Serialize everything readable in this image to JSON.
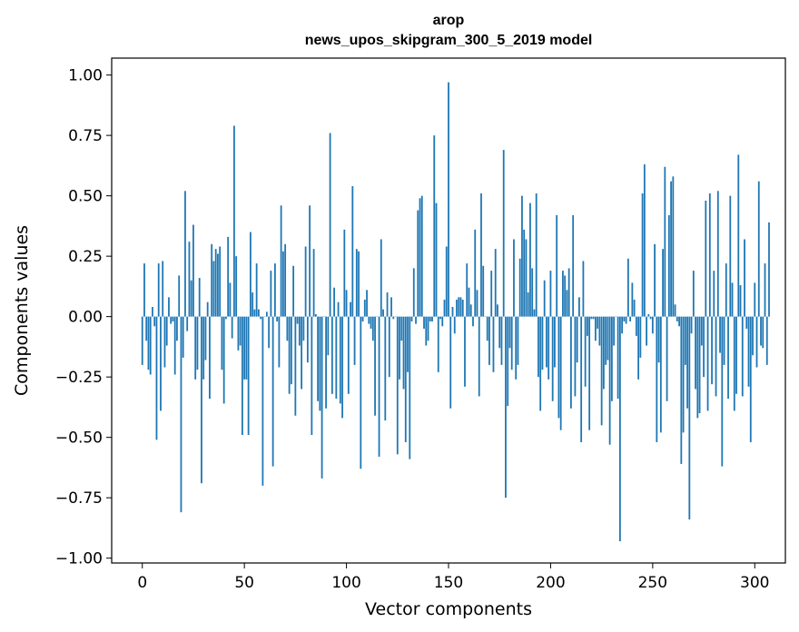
{
  "chart_data": {
    "type": "bar",
    "title": "arop",
    "subtitle": "news_upos_skipgram_300_5_2019 model",
    "xlabel": "Vector components",
    "ylabel": "Components values",
    "xlim": [
      -15,
      315
    ],
    "ylim": [
      -1.02,
      1.07
    ],
    "xticks": [
      0,
      50,
      100,
      150,
      200,
      250,
      300
    ],
    "xtick_labels": [
      "0",
      "50",
      "100",
      "150",
      "200",
      "250",
      "300"
    ],
    "yticks": [
      1.0,
      0.75,
      0.5,
      0.25,
      0.0,
      -0.25,
      -0.5,
      -0.75,
      -1.0
    ],
    "ytick_labels": [
      "1.00",
      "0.75",
      "0.50",
      "0.25",
      "0.00",
      "−0.25",
      "−0.50",
      "−0.75",
      "−1.00"
    ],
    "grid": false,
    "bar_color": "#1f77b4",
    "values": [
      -0.2,
      0.22,
      -0.1,
      -0.22,
      -0.24,
      0.04,
      -0.04,
      -0.51,
      0.22,
      -0.39,
      0.23,
      -0.21,
      -0.12,
      0.08,
      -0.03,
      -0.02,
      -0.24,
      -0.1,
      0.17,
      -0.81,
      -0.17,
      0.52,
      -0.06,
      0.31,
      0.15,
      0.38,
      -0.26,
      -0.22,
      0.16,
      -0.69,
      -0.26,
      -0.18,
      0.06,
      -0.34,
      0.3,
      0.23,
      0.28,
      0.26,
      0.29,
      -0.22,
      -0.36,
      -0.01,
      0.33,
      0.14,
      -0.09,
      0.79,
      0.25,
      -0.14,
      -0.12,
      -0.49,
      -0.26,
      -0.26,
      -0.49,
      0.35,
      0.1,
      0.03,
      0.22,
      0.03,
      -0.01,
      -0.7,
      0.0,
      0.02,
      -0.13,
      0.19,
      -0.62,
      0.22,
      -0.02,
      -0.21,
      0.46,
      0.27,
      0.3,
      -0.1,
      -0.32,
      -0.28,
      0.21,
      -0.41,
      -0.03,
      -0.12,
      -0.3,
      -0.1,
      0.29,
      -0.19,
      0.46,
      -0.49,
      0.28,
      0.01,
      -0.35,
      -0.39,
      -0.67,
      0.0,
      -0.38,
      -0.16,
      0.76,
      -0.32,
      0.12,
      -0.34,
      0.06,
      -0.36,
      -0.42,
      0.36,
      0.11,
      -0.32,
      0.06,
      0.54,
      -0.2,
      0.28,
      0.27,
      -0.63,
      -0.02,
      0.07,
      0.11,
      -0.03,
      -0.05,
      -0.1,
      -0.41,
      0.0,
      -0.58,
      0.32,
      0.03,
      -0.43,
      0.1,
      -0.25,
      0.08,
      -0.01,
      0.0,
      -0.57,
      -0.26,
      -0.1,
      -0.3,
      -0.52,
      -0.23,
      -0.59,
      -0.02,
      0.2,
      -0.03,
      0.44,
      0.49,
      0.5,
      -0.05,
      -0.12,
      -0.1,
      -0.02,
      -0.02,
      0.75,
      0.47,
      -0.23,
      -0.01,
      -0.04,
      0.07,
      0.29,
      0.97,
      -0.38,
      0.04,
      -0.07,
      0.07,
      0.08,
      0.08,
      0.07,
      -0.29,
      0.22,
      0.12,
      0.05,
      -0.04,
      0.36,
      0.11,
      -0.33,
      0.51,
      0.21,
      0.0,
      -0.1,
      -0.2,
      0.19,
      -0.23,
      0.28,
      0.05,
      -0.13,
      -0.2,
      0.69,
      -0.75,
      -0.37,
      -0.13,
      -0.22,
      0.32,
      -0.26,
      -0.2,
      0.24,
      0.5,
      0.36,
      0.32,
      0.1,
      0.47,
      0.2,
      0.03,
      0.51,
      -0.25,
      -0.39,
      -0.22,
      0.15,
      -0.21,
      -0.26,
      0.19,
      -0.35,
      -0.21,
      0.42,
      -0.42,
      -0.47,
      0.19,
      0.17,
      0.11,
      0.2,
      -0.38,
      0.42,
      -0.33,
      -0.19,
      0.08,
      -0.52,
      0.23,
      -0.29,
      -0.08,
      -0.47,
      -0.01,
      -0.01,
      -0.1,
      -0.05,
      -0.12,
      -0.45,
      -0.3,
      -0.2,
      -0.18,
      -0.53,
      -0.35,
      -0.12,
      0.0,
      -0.34,
      -0.93,
      -0.07,
      -0.02,
      -0.03,
      0.24,
      -0.02,
      0.14,
      0.07,
      -0.08,
      -0.26,
      -0.17,
      0.51,
      0.63,
      -0.12,
      0.01,
      -0.01,
      -0.07,
      0.3,
      -0.52,
      -0.19,
      -0.48,
      0.28,
      0.62,
      -0.35,
      0.42,
      0.56,
      0.58,
      0.05,
      -0.02,
      -0.04,
      -0.61,
      -0.48,
      -0.2,
      -0.38,
      -0.84,
      -0.07,
      0.19,
      -0.3,
      -0.42,
      -0.4,
      -0.12,
      -0.25,
      0.48,
      -0.39,
      0.51,
      -0.28,
      0.19,
      -0.33,
      0.52,
      -0.15,
      -0.62,
      -0.2,
      0.22,
      -0.34,
      0.5,
      0.14,
      -0.39,
      -0.32,
      0.67,
      0.13,
      -0.33,
      0.32,
      -0.05,
      -0.29,
      -0.52,
      -0.16,
      0.14,
      -0.21,
      0.56,
      -0.12,
      -0.13,
      0.22,
      -0.2,
      0.39
    ]
  }
}
